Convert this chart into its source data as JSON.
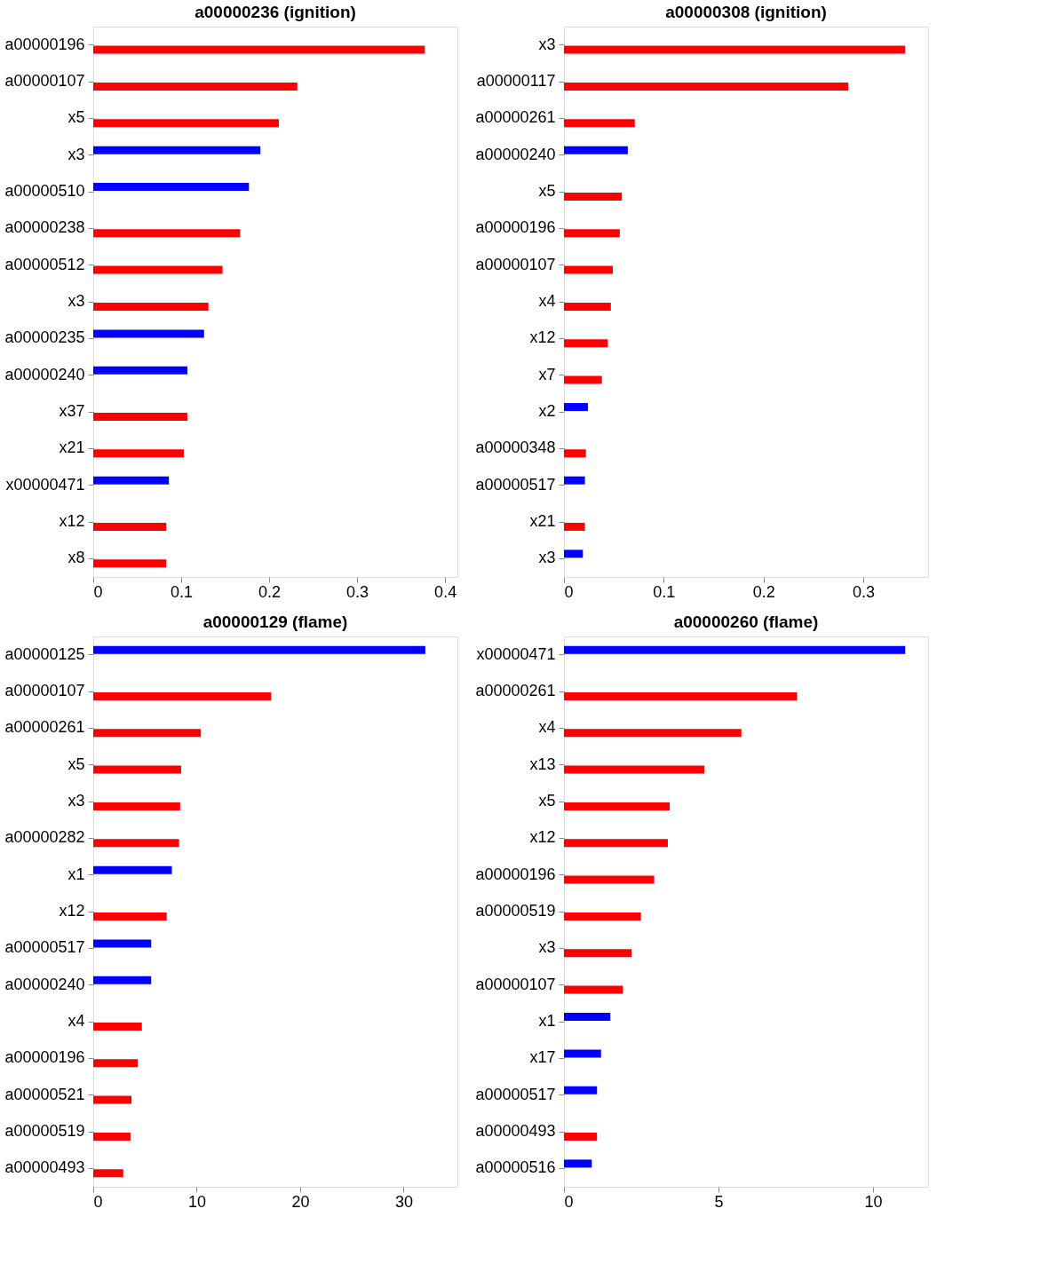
{
  "chart_data": [
    {
      "type": "bar",
      "orientation": "horizontal",
      "title": "a00000236 (ignition)",
      "categories": [
        "a00000196",
        "a00000107",
        "x5",
        "x3",
        "a00000510",
        "a00000238",
        "a00000512",
        "x3",
        "a00000235",
        "a00000240",
        "x37",
        "x21",
        "x00000471",
        "x12",
        "x8"
      ],
      "series": [
        {
          "color": "#0000ff",
          "values": [
            null,
            null,
            null,
            0.19,
            0.177,
            null,
            null,
            null,
            0.126,
            0.107,
            null,
            null,
            0.086,
            null,
            null
          ]
        },
        {
          "color": "#ff0000",
          "values": [
            0.377,
            0.232,
            0.211,
            null,
            null,
            0.167,
            0.147,
            0.131,
            null,
            null,
            0.107,
            0.103,
            null,
            0.083,
            0.083
          ]
        }
      ],
      "xlim": [
        0,
        0.414
      ],
      "xticks": [
        0,
        0.1,
        0.2,
        0.3,
        0.4
      ]
    },
    {
      "type": "bar",
      "orientation": "horizontal",
      "title": "a00000308 (ignition)",
      "categories": [
        "x3",
        "a00000117",
        "a00000261",
        "a00000240",
        "x5",
        "a00000196",
        "a00000107",
        "x4",
        "x12",
        "x7",
        "x2",
        "a00000348",
        "a00000517",
        "x21",
        "x3"
      ],
      "series": [
        {
          "color": "#0000ff",
          "values": [
            null,
            null,
            null,
            0.064,
            null,
            null,
            null,
            null,
            null,
            null,
            0.024,
            null,
            0.021,
            null,
            0.019
          ]
        },
        {
          "color": "#ff0000",
          "values": [
            0.342,
            0.285,
            0.071,
            null,
            0.058,
            0.056,
            0.049,
            0.047,
            0.044,
            0.038,
            null,
            0.022,
            null,
            0.021,
            null
          ]
        }
      ],
      "xlim": [
        0,
        0.365
      ],
      "xticks": [
        0,
        0.1,
        0.2,
        0.3
      ]
    },
    {
      "type": "bar",
      "orientation": "horizontal",
      "title": "a00000129 (flame)",
      "categories": [
        "a00000125",
        "a00000107",
        "a00000261",
        "x5",
        "x3",
        "a00000282",
        "x1",
        "x12",
        "a00000517",
        "a00000240",
        "x4",
        "a00000196",
        "a00000521",
        "a00000519",
        "a00000493"
      ],
      "series": [
        {
          "color": "#0000ff",
          "values": [
            32.1,
            null,
            null,
            null,
            null,
            null,
            7.6,
            null,
            5.6,
            5.6,
            null,
            null,
            null,
            null,
            null
          ]
        },
        {
          "color": "#ff0000",
          "values": [
            null,
            17.2,
            10.4,
            8.5,
            8.4,
            8.3,
            null,
            7.1,
            null,
            null,
            4.7,
            4.3,
            3.7,
            3.6,
            2.9
          ]
        }
      ],
      "xlim": [
        0,
        35.2
      ],
      "xticks": [
        0,
        10,
        20,
        30
      ]
    },
    {
      "type": "bar",
      "orientation": "horizontal",
      "title": "a00000260 (flame)",
      "categories": [
        "x00000471",
        "a00000261",
        "x4",
        "x13",
        "x5",
        "x12",
        "a00000196",
        "a00000519",
        "x3",
        "a00000107",
        "x1",
        "x17",
        "a00000517",
        "a00000493",
        "a00000516"
      ],
      "series": [
        {
          "color": "#0000ff",
          "values": [
            11.04,
            null,
            null,
            null,
            null,
            null,
            null,
            null,
            null,
            null,
            1.5,
            1.2,
            1.07,
            null,
            0.9
          ]
        },
        {
          "color": "#ff0000",
          "values": [
            null,
            7.54,
            5.74,
            4.54,
            3.42,
            3.36,
            2.92,
            2.49,
            2.19,
            1.91,
            null,
            null,
            null,
            1.07,
            null
          ]
        }
      ],
      "xlim": [
        0,
        11.78
      ],
      "xticks": [
        0,
        5,
        10
      ]
    }
  ]
}
